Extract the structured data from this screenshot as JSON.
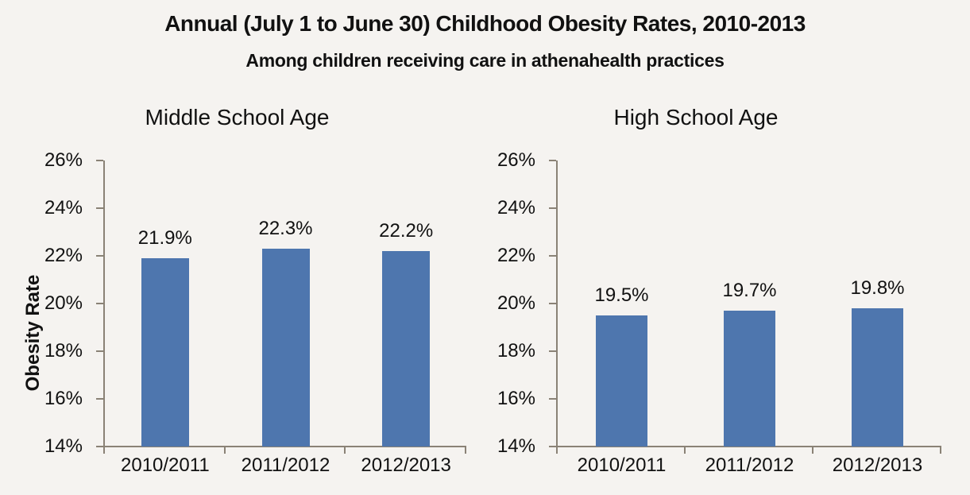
{
  "page": {
    "title": "Annual (July 1 to June 30) Childhood Obesity Rates, 2010-2013",
    "subtitle": "Among children receiving care in athenahealth practices"
  },
  "colors": {
    "background": "#F5F3F0",
    "bar": "#4E76AE",
    "axis": "#8A8276",
    "text": "#111111"
  },
  "chart_data": [
    {
      "type": "bar",
      "title": "Middle School Age",
      "ylabel": "Obesity Rate",
      "xlabel": "",
      "categories": [
        "2010/2011",
        "2011/2012",
        "2012/2013"
      ],
      "values": [
        21.9,
        22.3,
        22.2
      ],
      "data_labels": [
        "21.9%",
        "22.3%",
        "22.2%"
      ],
      "ylim": [
        14,
        26
      ],
      "ytick_step": 2,
      "ytick_labels": [
        "14%",
        "16%",
        "18%",
        "20%",
        "22%",
        "24%",
        "26%"
      ],
      "grid": false,
      "legend": "none"
    },
    {
      "type": "bar",
      "title": "High School Age",
      "ylabel": "",
      "xlabel": "",
      "categories": [
        "2010/2011",
        "2011/2012",
        "2012/2013"
      ],
      "values": [
        19.5,
        19.7,
        19.8
      ],
      "data_labels": [
        "19.5%",
        "19.7%",
        "19.8%"
      ],
      "ylim": [
        14,
        26
      ],
      "ytick_step": 2,
      "ytick_labels": [
        "14%",
        "16%",
        "18%",
        "20%",
        "22%",
        "24%",
        "26%"
      ],
      "grid": false,
      "legend": "none"
    }
  ]
}
